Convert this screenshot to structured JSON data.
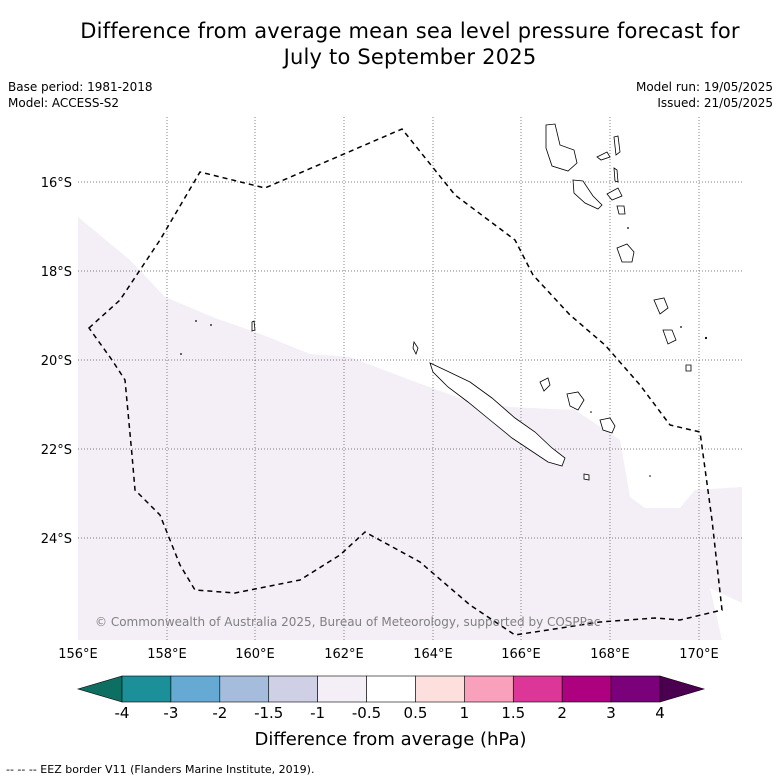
{
  "title_line1": "Difference from average mean sea level pressure forecast for",
  "title_line2": "July to September 2025",
  "meta": {
    "base_period": "Base period: 1981-2018",
    "model": "Model: ACCESS-S2",
    "model_run": "Model run: 19/05/2025",
    "issued": "Issued: 21/05/2025"
  },
  "map": {
    "lon_labels": [
      "156°E",
      "158°E",
      "160°E",
      "162°E",
      "164°E",
      "166°E",
      "168°E",
      "170°E"
    ],
    "lat_labels": [
      "16°S",
      "18°S",
      "20°S",
      "22°S",
      "24°S"
    ],
    "copyright": "© Commonwealth of Australia 2025, Bureau of Meteorology, supported by COSPPac",
    "shading_color": "#f4eef6",
    "shaded_category": "-1 to -0.5"
  },
  "colorbar": {
    "label": "Difference from average (hPa)",
    "ticks": [
      "-4",
      "-3",
      "-2",
      "-1.5",
      "-1",
      "-0.5",
      "0.5",
      "1",
      "1.5",
      "2",
      "3",
      "4"
    ],
    "colors": [
      "#0d6e62",
      "#1b9098",
      "#66a9d2",
      "#a6bcdc",
      "#cfd0e6",
      "#f4eef6",
      "#ffffff",
      "#fde0de",
      "#f9a0bc",
      "#dc3698",
      "#ad0180",
      "#7a017a",
      "#4a004f"
    ]
  },
  "footnote": "-- -- -- EEZ border V11 (Flanders Marine Institute, 2019)."
}
